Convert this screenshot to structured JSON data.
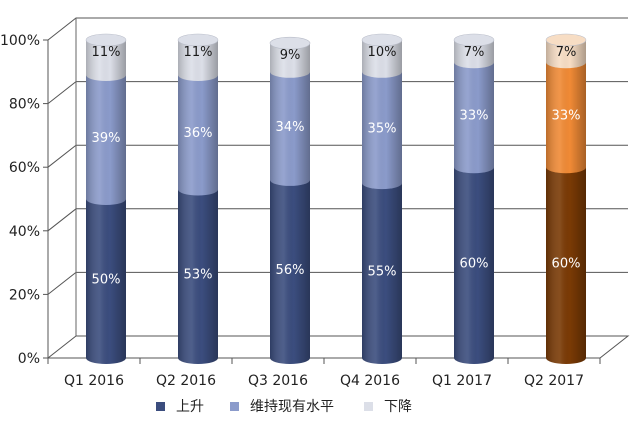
{
  "chart_data": {
    "type": "bar",
    "stacked": true,
    "percent": true,
    "categories": [
      "Q1 2016",
      "Q2 2016",
      "Q3 2016",
      "Q4 2016",
      "Q1 2017",
      "Q2 2017"
    ],
    "series": [
      {
        "name": "上升",
        "values": [
          50,
          53,
          56,
          55,
          60,
          60
        ],
        "labels": [
          "50%",
          "53%",
          "56%",
          "55%",
          "60%",
          "60%"
        ],
        "color": "#3b4d7e"
      },
      {
        "name": "维持现有水平",
        "values": [
          39,
          36,
          34,
          35,
          33,
          33
        ],
        "labels": [
          "39%",
          "36%",
          "34%",
          "35%",
          "33%",
          "33%"
        ],
        "color": "#8b9bcb"
      },
      {
        "name": "下降",
        "values": [
          11,
          11,
          9,
          10,
          7,
          7
        ],
        "labels": [
          "11%",
          "11%",
          "9%",
          "10%",
          "7%",
          "7%"
        ],
        "color": "#dcdfe8"
      }
    ],
    "highlight": {
      "category": "Q2 2017",
      "colors": [
        "#7a3a05",
        "#f08a35",
        "#f7ddc4"
      ]
    },
    "y_ticks": [
      "0%",
      "20%",
      "40%",
      "60%",
      "80%",
      "100%"
    ],
    "ylim": [
      0,
      100
    ],
    "grid": true,
    "legend_position": "bottom",
    "title": "",
    "xlabel": "",
    "ylabel": ""
  }
}
